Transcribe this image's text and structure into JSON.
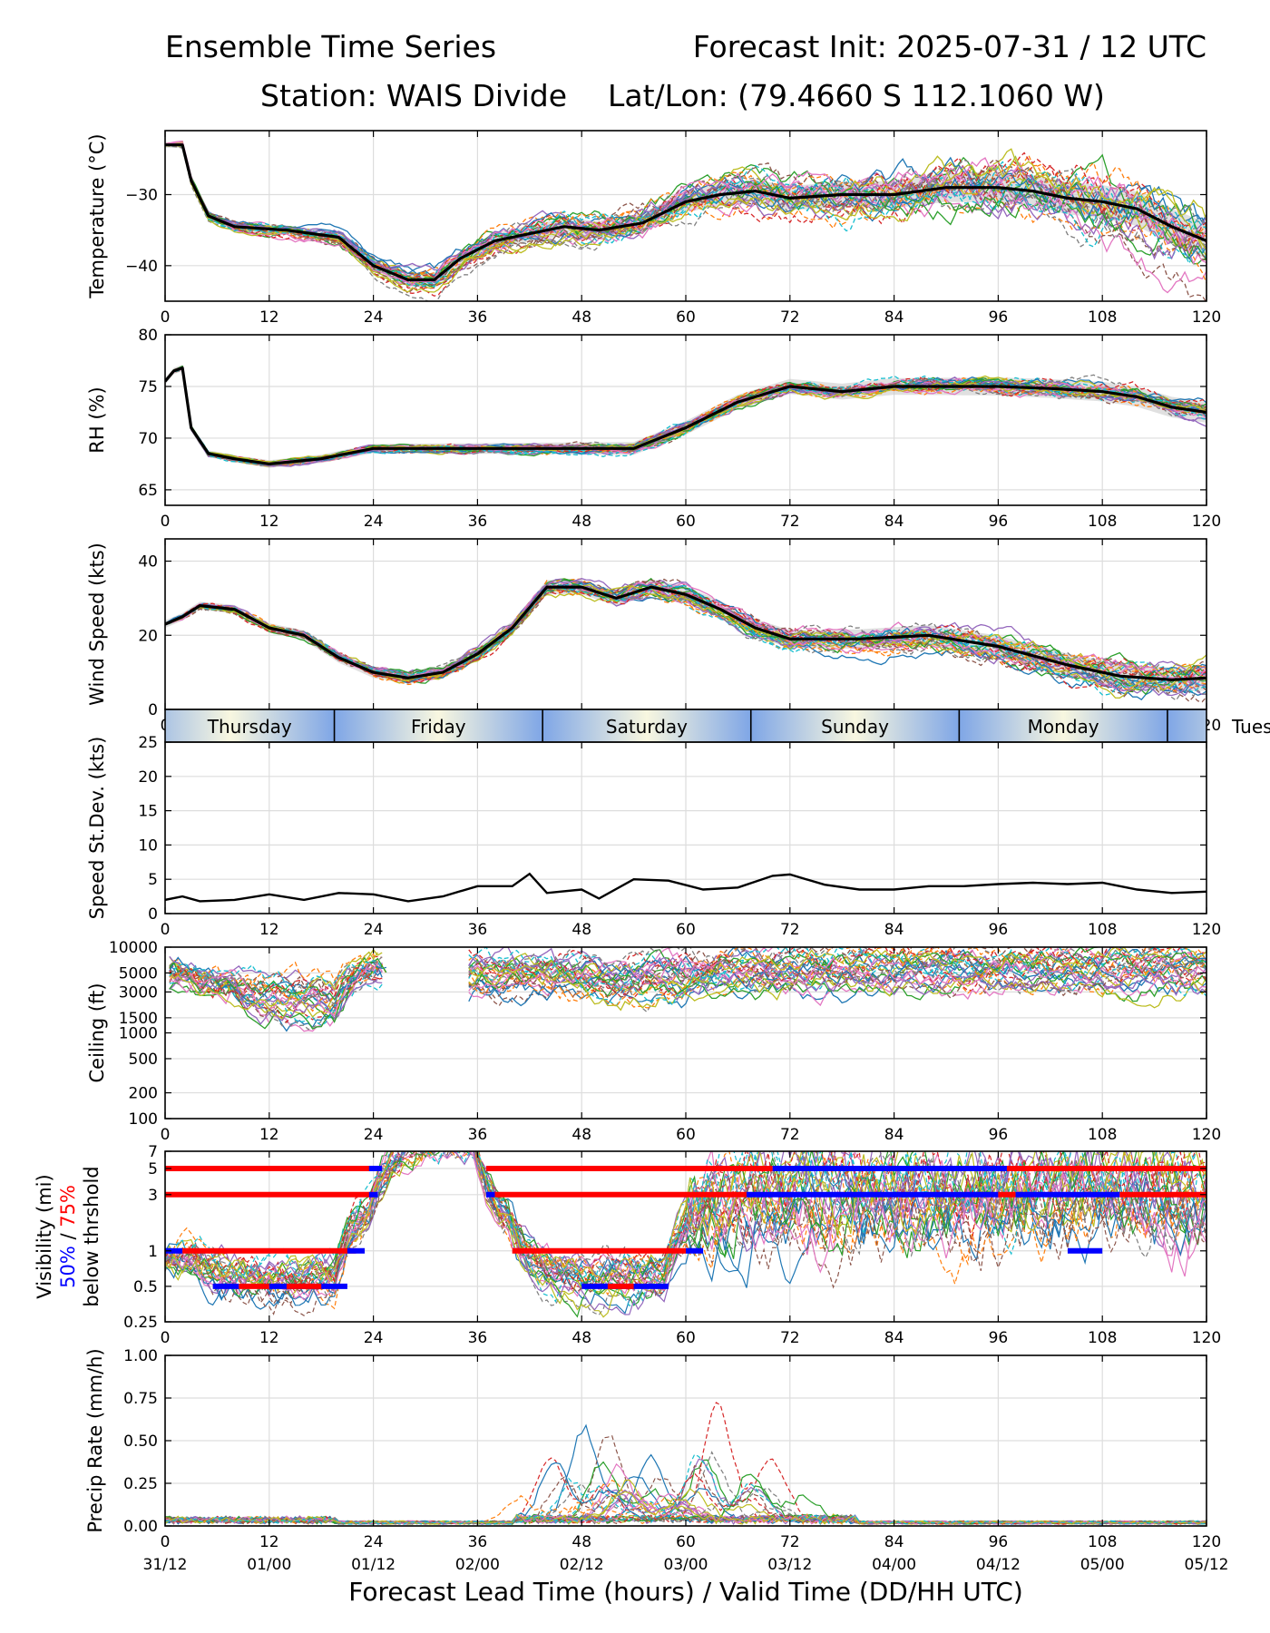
{
  "header": {
    "title_left": "Ensemble Time Series",
    "title_right": "Forecast Init: 2025-07-31 / 12 UTC",
    "station": "Station: WAIS Divide",
    "latlon": "Lat/Lon: (79.4660 S 112.1060 W)"
  },
  "x_axis": {
    "label": "Forecast Lead Time (hours) / Valid Time (DD/HH UTC)",
    "ticks": [
      0,
      12,
      24,
      36,
      48,
      60,
      72,
      84,
      96,
      108,
      120
    ],
    "valid_times": [
      "31/12",
      "01/00",
      "01/12",
      "02/00",
      "02/12",
      "03/00",
      "03/12",
      "04/00",
      "04/12",
      "05/00",
      "05/12"
    ],
    "range": [
      0,
      120
    ]
  },
  "day_band": {
    "days": [
      "Thursday",
      "Friday",
      "Saturday",
      "Sunday",
      "Monday",
      "Tues"
    ],
    "boundaries_hours": [
      19.5,
      43.5,
      67.5,
      91.5,
      115.5
    ]
  },
  "colors": {
    "ensemble_mean": "#000000",
    "spread_band": "#cccccc",
    "threshold_50": "#0000ff",
    "threshold_75": "#ff0000",
    "ensemble_palette": [
      "#1f77b4",
      "#ff7f0e",
      "#2ca02c",
      "#d62728",
      "#9467bd",
      "#8c564b",
      "#e377c2",
      "#7f7f7f",
      "#bcbd22",
      "#17becf"
    ]
  },
  "chart_data": [
    {
      "type": "line",
      "id": "temperature",
      "ylabel": "Temperature (°C)",
      "ylim": [
        -45,
        -21
      ],
      "yticks": [
        -40,
        -30
      ],
      "grid": true,
      "mean": {
        "x": [
          0,
          2,
          3,
          5,
          8,
          14,
          20,
          24,
          28,
          31,
          34,
          38,
          42,
          46,
          50,
          55,
          60,
          64,
          68,
          72,
          78,
          84,
          90,
          96,
          100,
          104,
          108,
          112,
          116,
          120
        ],
        "y": [
          -23,
          -23,
          -28,
          -33,
          -34.5,
          -35,
          -36,
          -40,
          -42,
          -42,
          -39,
          -36.5,
          -35.5,
          -34.5,
          -35,
          -34,
          -31,
          -30,
          -29.5,
          -30.5,
          -30,
          -30,
          -29,
          -29,
          -29.5,
          -30.5,
          -31,
          -32,
          -34.5,
          -36.5
        ]
      },
      "members": 30
    },
    {
      "type": "line",
      "id": "rh",
      "ylabel": "RH (%)",
      "ylim": [
        63.5,
        80
      ],
      "yticks": [
        65,
        70,
        75,
        80
      ],
      "grid": true,
      "mean": {
        "x": [
          0,
          1,
          2,
          3,
          5,
          8,
          12,
          18,
          24,
          30,
          36,
          42,
          48,
          54,
          60,
          66,
          72,
          78,
          84,
          90,
          96,
          102,
          108,
          112,
          116,
          120
        ],
        "y": [
          75.5,
          76.5,
          76.8,
          71,
          68.5,
          68,
          67.5,
          68,
          69,
          69,
          69,
          69,
          69,
          69,
          71,
          73.5,
          75,
          74.5,
          75,
          75,
          75,
          74.8,
          74.5,
          74,
          73,
          72.5
        ]
      },
      "members": 30
    },
    {
      "type": "line",
      "id": "wind_speed",
      "ylabel": "Wind Speed (kts)",
      "ylim": [
        0,
        46
      ],
      "yticks": [
        0,
        20,
        40
      ],
      "grid": true,
      "mean": {
        "x": [
          0,
          2,
          4,
          8,
          12,
          16,
          20,
          24,
          28,
          32,
          36,
          40,
          44,
          48,
          52,
          56,
          60,
          64,
          68,
          72,
          80,
          88,
          96,
          104,
          110,
          116,
          120
        ],
        "y": [
          23,
          25,
          28,
          27,
          22,
          20,
          14,
          10,
          8.5,
          10,
          15,
          22,
          33,
          33,
          30,
          33,
          31,
          27,
          22,
          19,
          19,
          20,
          17,
          12,
          9,
          8,
          8.5
        ]
      },
      "members": 30
    },
    {
      "type": "line",
      "id": "speed_stdev",
      "ylabel": "Speed St.Dev. (kts)",
      "ylim": [
        0,
        25
      ],
      "yticks": [
        0,
        5,
        10,
        15,
        20,
        25
      ],
      "grid": true,
      "mean": {
        "x": [
          0,
          2,
          4,
          8,
          12,
          16,
          20,
          24,
          28,
          32,
          36,
          40,
          42,
          44,
          48,
          50,
          54,
          58,
          62,
          66,
          70,
          72,
          76,
          80,
          84,
          88,
          92,
          96,
          100,
          104,
          108,
          112,
          116,
          120
        ],
        "y": [
          2,
          2.5,
          1.8,
          2,
          2.8,
          2,
          3,
          2.8,
          1.8,
          2.5,
          4,
          4,
          5.8,
          3,
          3.5,
          2.2,
          5,
          4.8,
          3.5,
          3.8,
          5.5,
          5.7,
          4.2,
          3.5,
          3.5,
          4,
          4,
          4.3,
          4.5,
          4.3,
          4.5,
          3.5,
          3,
          3.2
        ]
      }
    },
    {
      "type": "line",
      "id": "ceiling",
      "ylabel": "Ceiling (ft)",
      "yscale": "log",
      "ylim": [
        100,
        10000
      ],
      "yticks": [
        100,
        200,
        500,
        1000,
        1500,
        3000,
        5000,
        10000
      ],
      "grid": true,
      "members": 30
    },
    {
      "type": "line",
      "id": "visibility",
      "ylabel": "Visibility (mi)",
      "ylabel_pct_50": "50%",
      "ylabel_sep": " / ",
      "ylabel_pct_75": "75%",
      "ylabel_sub": "below thrshold",
      "yscale": "log",
      "ylim": [
        0.25,
        7
      ],
      "yticks": [
        0.25,
        0.5,
        1,
        3,
        5,
        7
      ],
      "thresholds": [
        0.5,
        1,
        3,
        5
      ],
      "grid": true,
      "members": 30
    },
    {
      "type": "line",
      "id": "precip",
      "ylabel": "Precip Rate (mm/h)",
      "ylim": [
        0,
        1
      ],
      "yticks": [
        0.0,
        0.25,
        0.5,
        0.75,
        1.0
      ],
      "ytick_labels": [
        "0.00",
        "0.25",
        "0.50",
        "0.75",
        "1.00"
      ],
      "grid": true,
      "members": 30
    }
  ]
}
